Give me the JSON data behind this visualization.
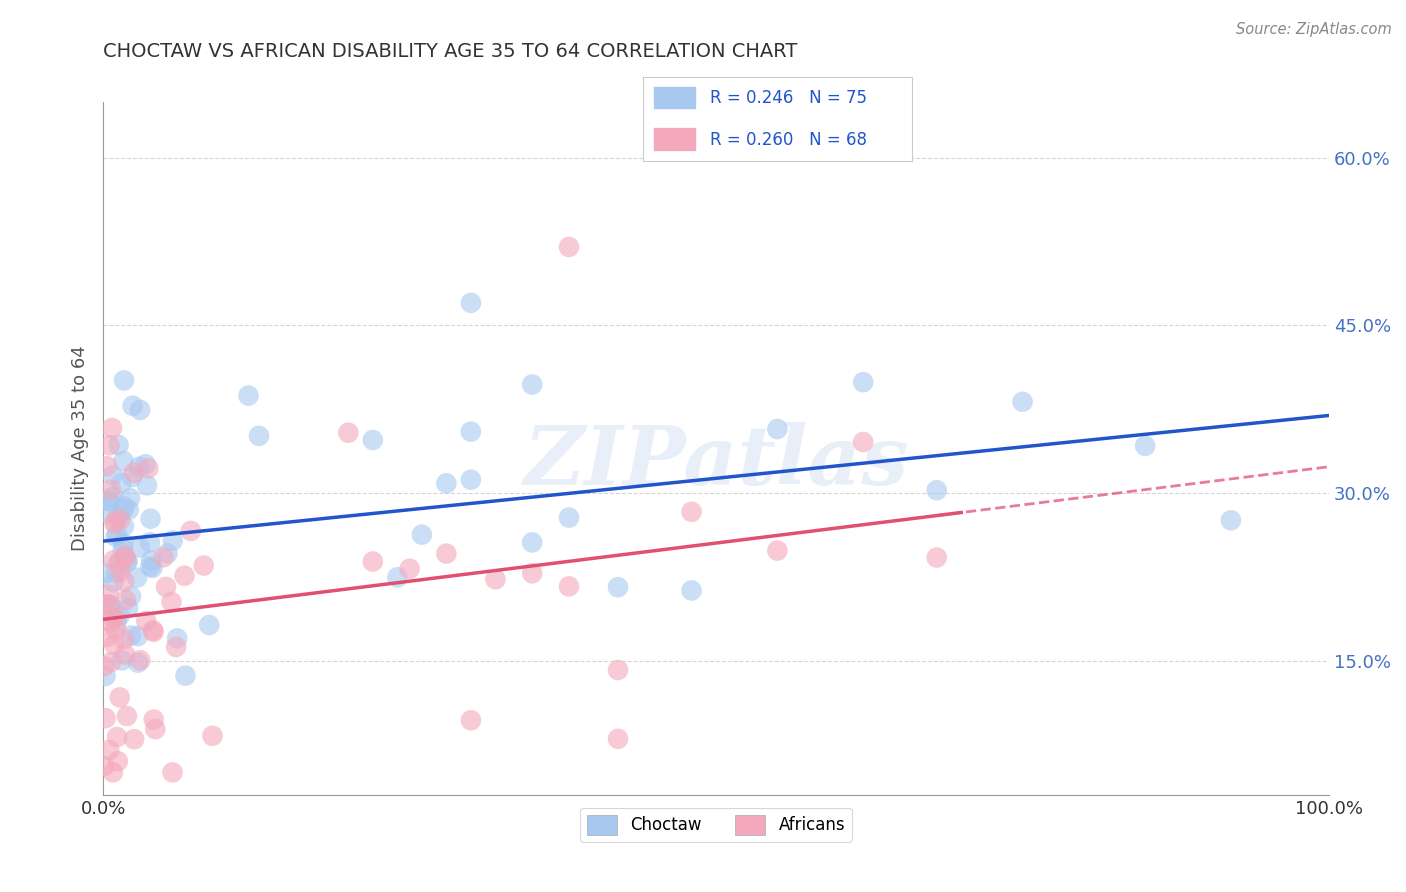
{
  "title": "CHOCTAW VS AFRICAN DISABILITY AGE 35 TO 64 CORRELATION CHART",
  "source_text": "Source: ZipAtlas.com",
  "ylabel": "Disability Age 35 to 64",
  "xlim": [
    0,
    100
  ],
  "ylim": [
    3,
    65
  ],
  "xtick_labels": [
    "0.0%",
    "100.0%"
  ],
  "xtick_values": [
    0,
    100
  ],
  "ytick_labels": [
    "15.0%",
    "30.0%",
    "45.0%",
    "60.0%"
  ],
  "ytick_values": [
    15,
    30,
    45,
    60
  ],
  "watermark_text": "ZIPatlas",
  "legend_labels": [
    "Choctaw",
    "Africans"
  ],
  "choctaw_color": "#a8c8f0",
  "africans_color": "#f4a8bc",
  "choctaw_line_color": "#2255cc",
  "africans_line_color": "#e05070",
  "background_color": "#ffffff",
  "grid_color": "#cccccc",
  "title_color": "#333333",
  "ytick_color": "#4472c4",
  "xtick_color": "#333333"
}
